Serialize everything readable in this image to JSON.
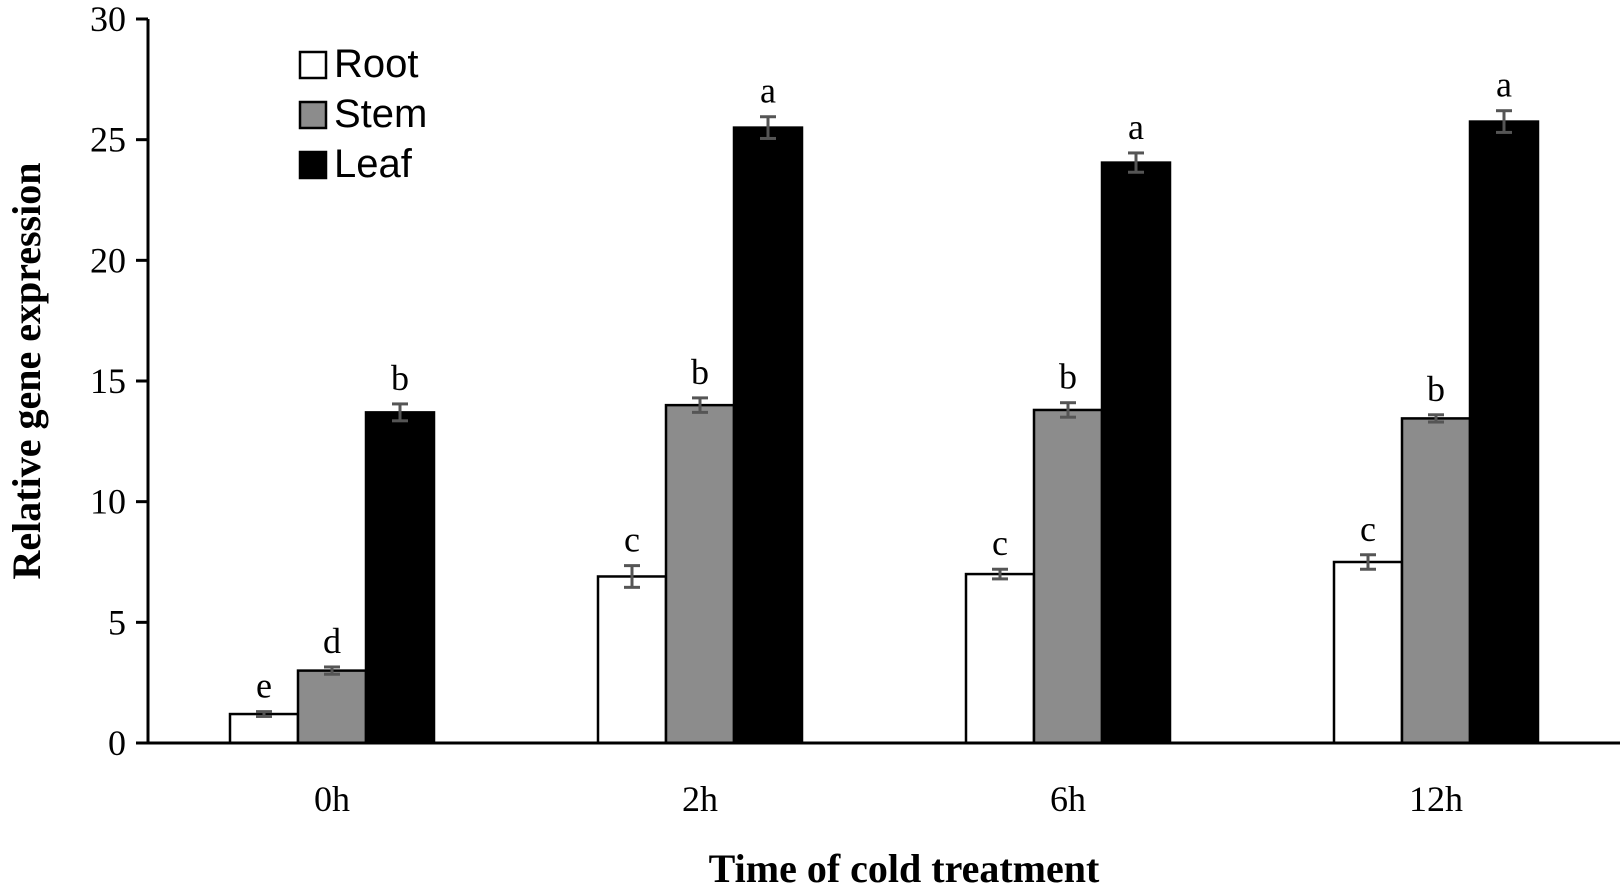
{
  "chart_data": {
    "type": "bar",
    "title": "",
    "xlabel": "Time of cold treatment",
    "ylabel": "Relative gene expression",
    "ylim": [
      0,
      30
    ],
    "yticks": [
      "0",
      "5",
      "10",
      "15",
      "20",
      "25",
      "30"
    ],
    "ytick_values": [
      0,
      5,
      10,
      15,
      20,
      25,
      30
    ],
    "categories": [
      "0h",
      "2h",
      "6h",
      "12h"
    ],
    "legend_position": "top-left",
    "series": [
      {
        "name": "Root",
        "color": "#ffffff",
        "values": [
          1.2,
          6.9,
          7.0,
          7.5
        ],
        "errors": [
          0.1,
          0.45,
          0.2,
          0.3
        ],
        "letters": [
          "e",
          "c",
          "c",
          "c"
        ]
      },
      {
        "name": "Stem",
        "color": "#8c8c8c",
        "values": [
          3.0,
          14.0,
          13.8,
          13.45
        ],
        "errors": [
          0.15,
          0.3,
          0.3,
          0.15
        ],
        "letters": [
          "d",
          "b",
          "b",
          "b"
        ]
      },
      {
        "name": "Leaf",
        "color": "#000000",
        "values": [
          13.7,
          25.5,
          24.05,
          25.75
        ],
        "errors": [
          0.35,
          0.45,
          0.4,
          0.45
        ],
        "letters": [
          "b",
          "a",
          "a",
          "a"
        ]
      }
    ]
  }
}
